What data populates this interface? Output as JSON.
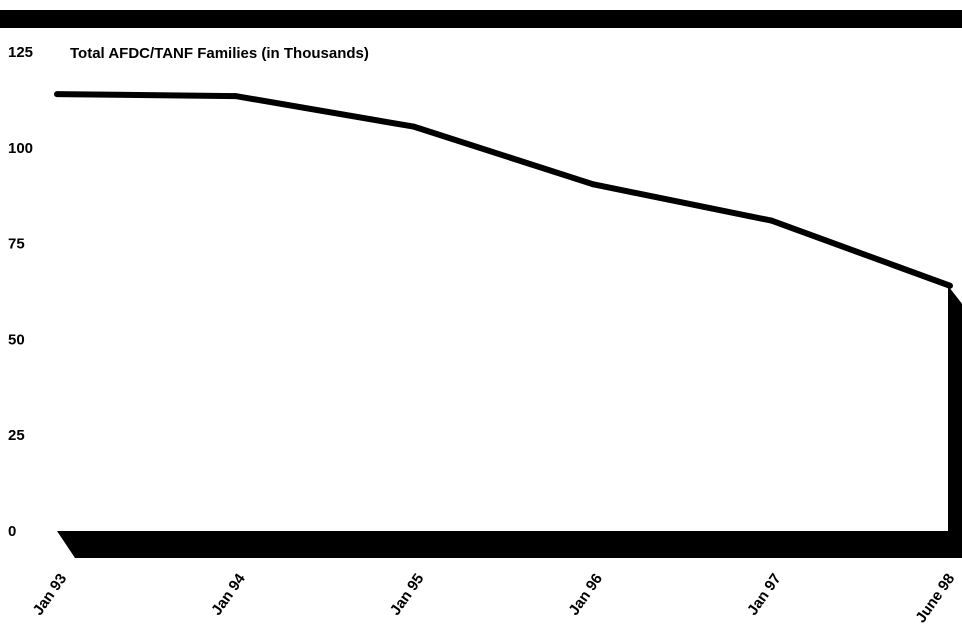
{
  "chart_data": {
    "type": "line",
    "title": "Total AFDC/TANF Families (in Thousands)",
    "categories": [
      "Jan 93",
      "Jan 94",
      "Jan 95",
      "Jan 96",
      "Jan 97",
      "June 98"
    ],
    "series": [
      {
        "values": [
          114,
          113.5,
          105.5,
          90.5,
          81,
          64
        ]
      }
    ],
    "y_ticks": [
      0,
      25,
      50,
      75,
      100,
      125
    ],
    "ylim": [
      0,
      125
    ],
    "grid": false,
    "legend": "none",
    "colors": {
      "line": "#000000",
      "frame": "#000000",
      "background": "#ffffff"
    }
  }
}
